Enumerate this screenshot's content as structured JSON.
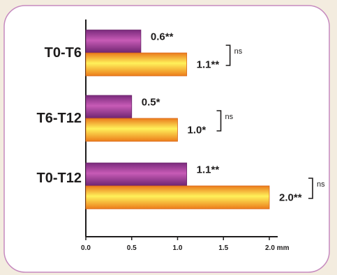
{
  "chart_data": {
    "type": "bar",
    "orientation": "horizontal",
    "categories": [
      "T0-T6",
      "T6-T12",
      "T0-T12"
    ],
    "series": [
      {
        "values": [
          0.6,
          0.5,
          1.1
        ],
        "labels": [
          "0.6**",
          "0.5*",
          "1.1**"
        ],
        "color": "#a53d9a"
      },
      {
        "values": [
          1.1,
          1.0,
          2.0
        ],
        "labels": [
          "1.1**",
          "1.0*",
          "2.0**"
        ],
        "color": "#f5b526"
      }
    ],
    "comparisons": [
      "ns",
      "ns",
      "ns"
    ],
    "xlim": [
      0,
      2.15
    ],
    "xticks": [
      0.0,
      0.5,
      1.0,
      1.5,
      2.0
    ],
    "xtick_labels": [
      "0.0",
      "0.5",
      "1.0",
      "1.5",
      "2.0 mm"
    ],
    "grid": false,
    "legend": "none"
  }
}
